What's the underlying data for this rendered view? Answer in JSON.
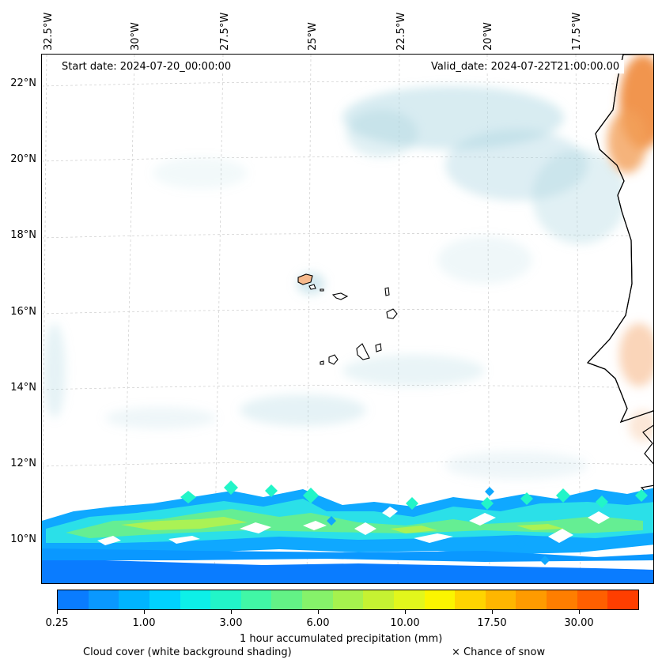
{
  "map": {
    "start_date": "Start date: 2024-07-20_00:00:00",
    "valid_date": "Valid_date: 2024-07-22T21:00:00.00",
    "lon_labels": [
      "32.5°W",
      "30°W",
      "27.5°W",
      "25°W",
      "22.5°W",
      "20°W",
      "17.5°W"
    ],
    "lat_labels": [
      "22°N",
      "20°N",
      "18°N",
      "16°N",
      "14°N",
      "12°N",
      "10°N"
    ]
  },
  "colorbar": {
    "label": "1 hour accumulated precipitation (mm)",
    "ticks": [
      "0.25",
      "1.00",
      "3.00",
      "6.00",
      "10.00",
      "17.50",
      "30.00"
    ],
    "colors": [
      "#0a7cff",
      "#0a98ff",
      "#00b4ff",
      "#00d2ff",
      "#0df0e8",
      "#22f5c8",
      "#41f7a6",
      "#63f286",
      "#86f26a",
      "#a6f24e",
      "#c6f232",
      "#e2f71c",
      "#fbf500",
      "#ffd400",
      "#ffb600",
      "#ff9b00",
      "#ff7e00",
      "#ff5f00",
      "#ff3e00"
    ]
  },
  "legend": {
    "cloud_cover": "Cloud cover (white background shading)",
    "snow": "× Chance of snow"
  }
}
